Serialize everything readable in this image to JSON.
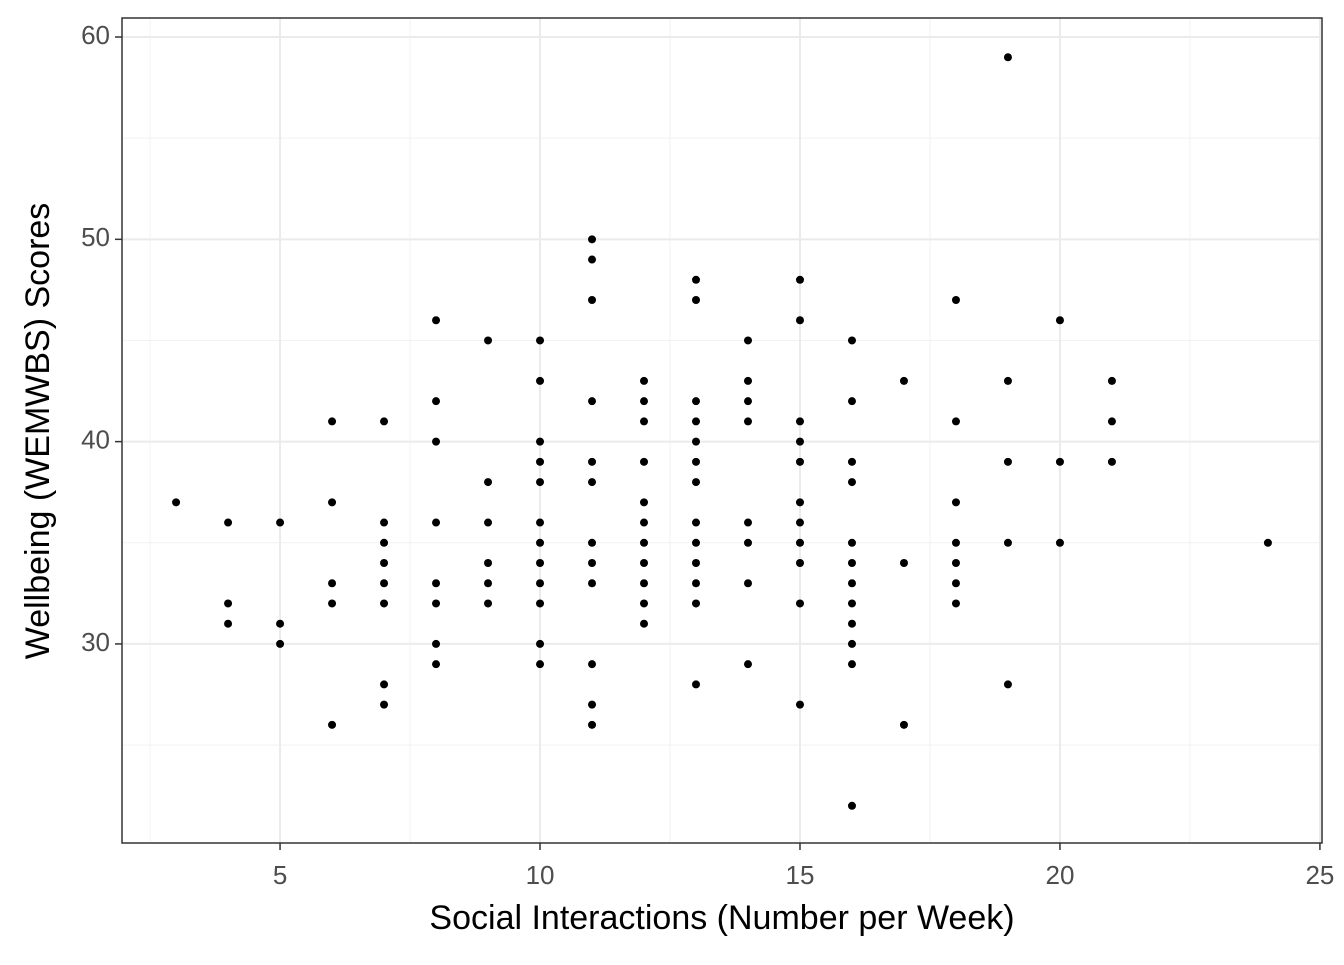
{
  "chart_data": {
    "type": "scatter",
    "x_label": "Social Interactions (Number per Week)",
    "y_label": "Wellbeing (WEMWBS) Scores",
    "color": "#000000",
    "grid": true,
    "xlim": [
      1.96,
      25.04
    ],
    "xticks": [
      5,
      10,
      15,
      20,
      25
    ],
    "ylim": [
      20.16,
      60.94
    ],
    "yticks": [
      30,
      40,
      50,
      60
    ],
    "x": [
      3,
      4,
      4,
      4,
      5,
      5,
      5,
      6,
      6,
      6,
      6,
      6,
      7,
      7,
      7,
      7,
      7,
      7,
      7,
      7,
      8,
      8,
      8,
      8,
      8,
      8,
      8,
      8,
      9,
      9,
      9,
      9,
      9,
      9,
      10,
      10,
      10,
      10,
      10,
      10,
      10,
      10,
      10,
      10,
      10,
      10,
      11,
      11,
      11,
      11,
      11,
      11,
      11,
      11,
      11,
      11,
      11,
      11,
      12,
      12,
      12,
      12,
      12,
      12,
      12,
      12,
      12,
      12,
      12,
      13,
      13,
      13,
      13,
      13,
      13,
      13,
      13,
      13,
      13,
      13,
      13,
      13,
      14,
      14,
      14,
      14,
      14,
      14,
      14,
      14,
      15,
      15,
      15,
      15,
      15,
      15,
      15,
      15,
      15,
      15,
      15,
      16,
      16,
      16,
      16,
      16,
      16,
      16,
      16,
      16,
      16,
      16,
      16,
      17,
      17,
      17,
      18,
      18,
      18,
      18,
      18,
      18,
      18,
      19,
      19,
      19,
      19,
      19,
      20,
      20,
      20,
      21,
      21,
      21,
      24
    ],
    "values": [
      37,
      36,
      32,
      31,
      36,
      31,
      30,
      41,
      37,
      33,
      32,
      26,
      41,
      36,
      35,
      34,
      33,
      32,
      28,
      27,
      46,
      42,
      40,
      36,
      33,
      32,
      30,
      29,
      45,
      38,
      36,
      34,
      33,
      32,
      45,
      43,
      40,
      39,
      38,
      36,
      35,
      34,
      33,
      32,
      30,
      29,
      50,
      49,
      47,
      42,
      39,
      38,
      35,
      34,
      33,
      29,
      27,
      26,
      43,
      42,
      41,
      39,
      37,
      36,
      35,
      34,
      33,
      32,
      31,
      48,
      47,
      42,
      41,
      40,
      39,
      38,
      36,
      35,
      34,
      33,
      32,
      28,
      45,
      43,
      42,
      41,
      36,
      35,
      33,
      29,
      48,
      46,
      41,
      40,
      39,
      37,
      36,
      35,
      34,
      32,
      27,
      45,
      42,
      39,
      38,
      35,
      34,
      33,
      32,
      31,
      30,
      29,
      22,
      43,
      34,
      26,
      47,
      41,
      37,
      35,
      34,
      33,
      32,
      59,
      43,
      39,
      35,
      28,
      46,
      39,
      35,
      43,
      41,
      39,
      35
    ]
  }
}
